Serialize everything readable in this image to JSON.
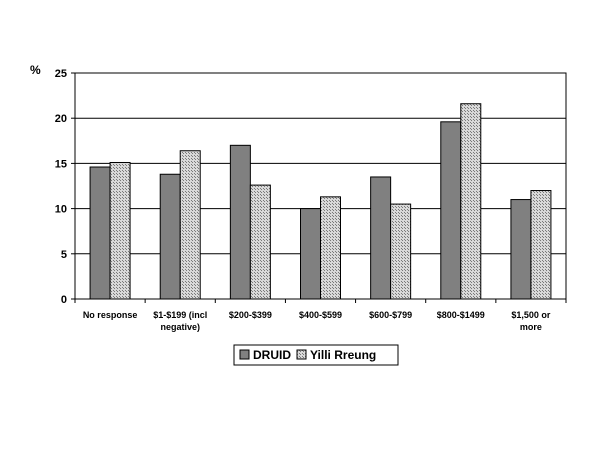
{
  "chart_data": {
    "type": "bar",
    "ylabel": "%",
    "ylim": [
      0,
      25
    ],
    "yticks": [
      0,
      5,
      10,
      15,
      20,
      25
    ],
    "grid": true,
    "legend_position": "bottom",
    "categories": [
      [
        "No response"
      ],
      [
        "$1-$199 (incl",
        "negative)"
      ],
      [
        "$200-$399"
      ],
      [
        "$400-$599"
      ],
      [
        "$600-$799"
      ],
      [
        "$800-$1499"
      ],
      [
        "$1,500 or",
        "more"
      ]
    ],
    "series": [
      {
        "name": "DRUID",
        "values": [
          14.6,
          13.8,
          17.0,
          10.0,
          13.5,
          19.6,
          11.0
        ],
        "color": "#808080",
        "pattern": "solid"
      },
      {
        "name": "Yilli Rreung",
        "values": [
          15.1,
          16.4,
          12.6,
          11.3,
          10.5,
          21.6,
          12.0
        ],
        "color": "#bfbfbf",
        "pattern": "hatched"
      }
    ]
  }
}
